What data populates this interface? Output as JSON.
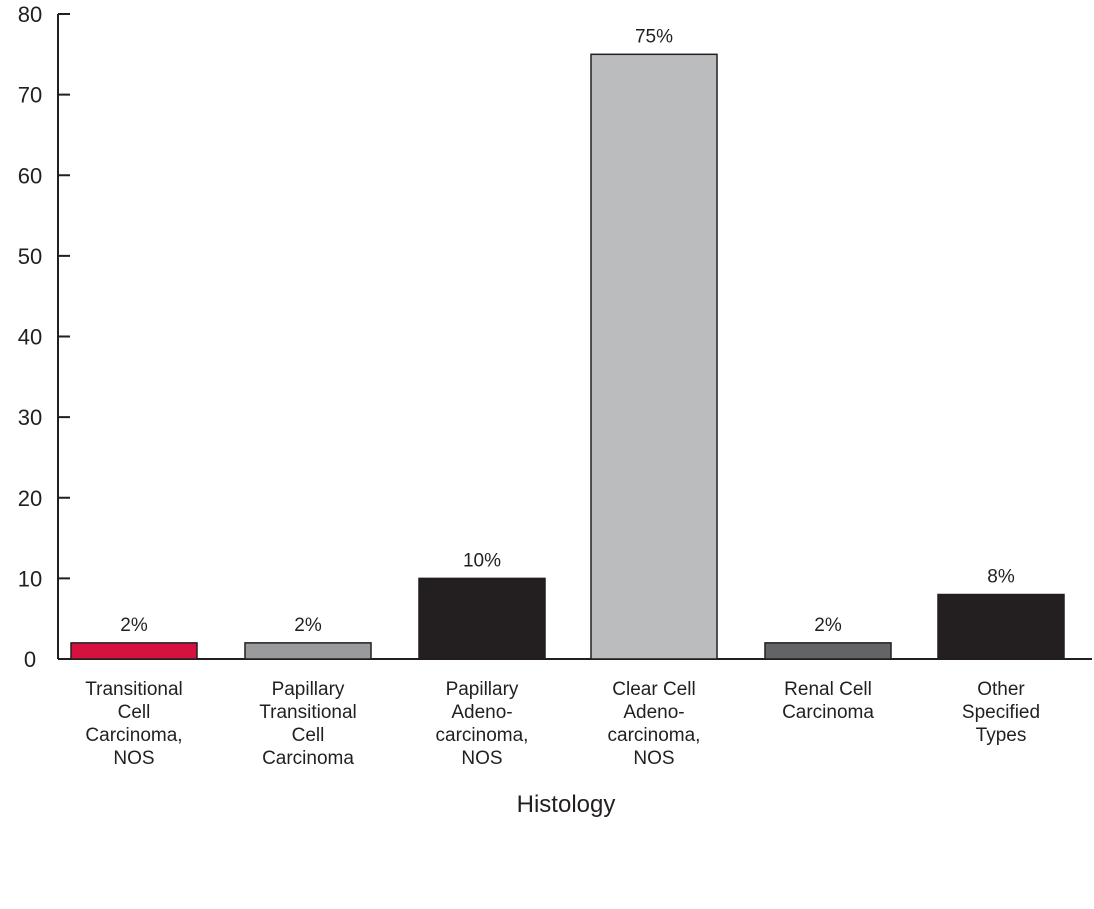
{
  "chart_data": {
    "type": "bar",
    "title": "",
    "xlabel": "Histology",
    "ylabel": "",
    "ylim": [
      0,
      80
    ],
    "yticks": [
      0,
      10,
      20,
      30,
      40,
      50,
      60,
      70,
      80
    ],
    "grid": false,
    "categories": [
      "Transitional Cell Carcinoma, NOS",
      "Papillary Transitional Cell Carcinoma",
      "Papillary Adeno-carcinoma, NOS",
      "Clear Cell Adeno-carcinoma, NOS",
      "Renal Cell Carcinoma",
      "Other Specified Types"
    ],
    "category_label_lines": [
      [
        "Transitional",
        "Cell",
        "Carcinoma,",
        "NOS"
      ],
      [
        "Papillary",
        "Transitional",
        "Cell",
        "Carcinoma"
      ],
      [
        "Papillary",
        "Adeno-",
        "carcinoma,",
        "NOS"
      ],
      [
        "Clear Cell",
        "Adeno-",
        "carcinoma,",
        "NOS"
      ],
      [
        "Renal Cell",
        "Carcinoma"
      ],
      [
        "Other",
        "Specified",
        "Types"
      ]
    ],
    "values": [
      2,
      2,
      10,
      75,
      2,
      8
    ],
    "data_labels": [
      "2%",
      "2%",
      "10%",
      "75%",
      "2%",
      "8%"
    ],
    "colors": [
      "#d5123f",
      "#9a9b9d",
      "#231f20",
      "#bbbcbe",
      "#636466",
      "#231f20"
    ]
  }
}
